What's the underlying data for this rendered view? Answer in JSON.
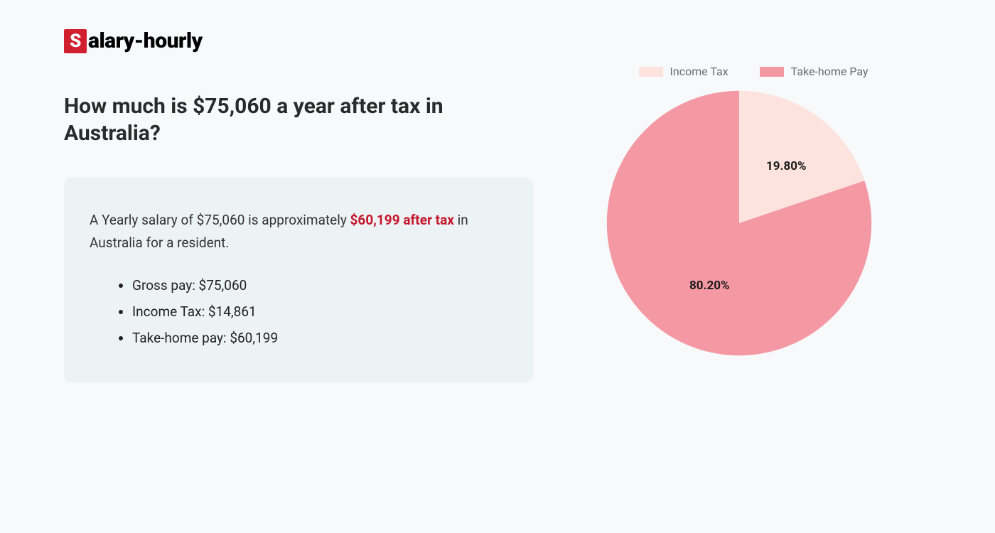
{
  "logo": {
    "box_letter": "S",
    "rest": "alary-hourly"
  },
  "heading": "How much is $75,060 a year after tax in Australia?",
  "summary": {
    "prefix": "A Yearly salary of $75,060 is approximately ",
    "highlight": "$60,199 after tax",
    "suffix": " in Australia for a resident."
  },
  "bullets": [
    "Gross pay: $75,060",
    "Income Tax: $14,861",
    "Take-home pay: $60,199"
  ],
  "chart": {
    "type": "pie",
    "legend": [
      {
        "label": "Income Tax",
        "color": "#fce3de"
      },
      {
        "label": "Take-home Pay",
        "color": "#f498a4"
      }
    ],
    "slices": [
      {
        "label": "19.80%",
        "pct": 19.8,
        "color": "#fce3de"
      },
      {
        "label": "80.20%",
        "pct": 80.2,
        "color": "#f498a4"
      }
    ],
    "background_color": "#f7f9fa",
    "label_fontsize": 17,
    "label_fontweight": 700,
    "label_color": "#1a1a1a"
  },
  "card_bg": "#edf2f4"
}
